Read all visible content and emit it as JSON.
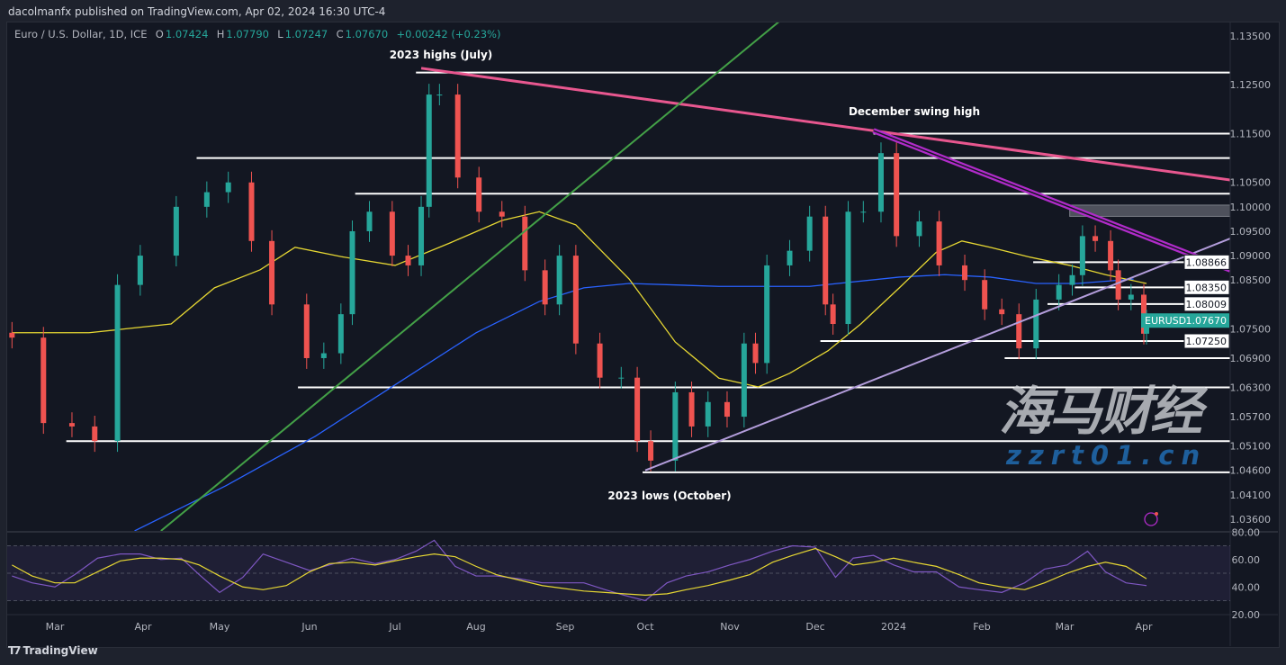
{
  "header": {
    "author_line": "dacolmanfx published on TradingView.com, Apr 02, 2024 16:30 UTC-4",
    "symbol_desc": "Euro / U.S. Dollar, 1D, ICE",
    "open_label": "O",
    "open": "1.07424",
    "high_label": "H",
    "high": "1.07790",
    "low_label": "L",
    "low": "1.07247",
    "close_label": "C",
    "close": "1.07670",
    "change": "+0.00242 (+0.23%)"
  },
  "colors": {
    "background": "#131722",
    "up": "#26a69a",
    "down": "#ef5350",
    "ma_fast": "#e6d733",
    "ma_slow": "#2962ff",
    "rsi": "#7e57c2",
    "rsi_ma": "#e6d733",
    "resistance_trend": "#e8578f",
    "green_trend": "#43a047",
    "support_trend": "#b39ddb",
    "channel_trend": "#b02bc9",
    "level": "#ffffff",
    "symbol_badge": "#26a69a"
  },
  "annotations": {
    "highs": "2023 highs (July)",
    "swing_high": "December swing high",
    "lows": "2023 lows (October)"
  },
  "branding": {
    "logo": "TradingView",
    "watermark_cn": "海马财经",
    "watermark_url": "zzrt01.cn"
  },
  "symbol_badge": {
    "symbol": "EURUSD",
    "price": "1.07670"
  },
  "chart_data": [
    {
      "type": "candlestick",
      "title": "Euro / U.S. Dollar, 1D, ICE",
      "x_tick_labels": [
        "Mar",
        "Apr",
        "May",
        "Jun",
        "Jul",
        "Aug",
        "Sep",
        "Oct",
        "Nov",
        "Dec",
        "2024",
        "Feb",
        "Mar",
        "Apr"
      ],
      "y_tick_labels": [
        "1.13500",
        "1.12500",
        "1.11500",
        "1.10500",
        "1.10000",
        "1.09500",
        "1.09000",
        "1.08500",
        "1.07500",
        "1.06900",
        "1.06300",
        "1.05700",
        "1.05100",
        "1.04600",
        "1.04100",
        "1.03600"
      ],
      "ylim": [
        1.0336,
        1.1383
      ],
      "grid": false,
      "closes": [
        [
          "2023-02-14",
          1.0732
        ],
        [
          "2023-02-25",
          1.0557
        ],
        [
          "2023-03-07",
          1.055
        ],
        [
          "2023-03-15",
          1.052
        ],
        [
          "2023-03-23",
          1.084
        ],
        [
          "2023-03-31",
          1.09
        ],
        [
          "2023-04-14",
          1.1
        ],
        [
          "2023-04-26",
          1.103
        ],
        [
          "2023-05-04",
          1.105
        ],
        [
          "2023-05-12",
          1.093
        ],
        [
          "2023-05-19",
          1.08
        ],
        [
          "2023-05-31",
          1.069
        ],
        [
          "2023-06-06",
          1.07
        ],
        [
          "2023-06-12",
          1.078
        ],
        [
          "2023-06-16",
          1.095
        ],
        [
          "2023-06-22",
          1.099
        ],
        [
          "2023-06-30",
          1.09
        ],
        [
          "2023-07-06",
          1.088
        ],
        [
          "2023-07-11",
          1.1
        ],
        [
          "2023-07-14",
          1.123
        ],
        [
          "2023-07-18",
          1.123
        ],
        [
          "2023-07-25",
          1.106
        ],
        [
          "2023-08-02",
          1.099
        ],
        [
          "2023-08-10",
          1.098
        ],
        [
          "2023-08-18",
          1.087
        ],
        [
          "2023-08-25",
          1.08
        ],
        [
          "2023-08-30",
          1.09
        ],
        [
          "2023-09-05",
          1.072
        ],
        [
          "2023-09-14",
          1.065
        ],
        [
          "2023-09-22",
          1.065
        ],
        [
          "2023-09-28",
          1.052
        ],
        [
          "2023-10-03",
          1.048
        ],
        [
          "2023-10-12",
          1.062
        ],
        [
          "2023-10-18",
          1.055
        ],
        [
          "2023-10-24",
          1.06
        ],
        [
          "2023-10-31",
          1.057
        ],
        [
          "2023-11-06",
          1.072
        ],
        [
          "2023-11-10",
          1.068
        ],
        [
          "2023-11-14",
          1.088
        ],
        [
          "2023-11-22",
          1.091
        ],
        [
          "2023-11-29",
          1.098
        ],
        [
          "2023-12-05",
          1.08
        ],
        [
          "2023-12-08",
          1.076
        ],
        [
          "2023-12-14",
          1.099
        ],
        [
          "2023-12-20",
          1.099
        ],
        [
          "2023-12-27",
          1.111
        ],
        [
          "2024-01-02",
          1.094
        ],
        [
          "2024-01-10",
          1.097
        ],
        [
          "2024-01-17",
          1.088
        ],
        [
          "2024-01-26",
          1.085
        ],
        [
          "2024-02-02",
          1.079
        ],
        [
          "2024-02-08",
          1.078
        ],
        [
          "2024-02-14",
          1.071
        ],
        [
          "2024-02-20",
          1.081
        ],
        [
          "2024-02-28",
          1.084
        ],
        [
          "2024-03-04",
          1.086
        ],
        [
          "2024-03-08",
          1.094
        ],
        [
          "2024-03-13",
          1.093
        ],
        [
          "2024-03-19",
          1.087
        ],
        [
          "2024-03-22",
          1.081
        ],
        [
          "2024-03-27",
          1.082
        ],
        [
          "2024-04-01",
          1.074
        ],
        [
          "2024-04-02",
          1.0767
        ]
      ],
      "ma_fast": [
        [
          "2023-02-14",
          1.0742
        ],
        [
          "2023-03-13",
          1.0742
        ],
        [
          "2023-04-12",
          1.076
        ],
        [
          "2023-04-29",
          1.0834
        ],
        [
          "2023-05-15",
          1.0871
        ],
        [
          "2023-05-27",
          1.0917
        ],
        [
          "2023-06-12",
          1.0898
        ],
        [
          "2023-07-01",
          1.088
        ],
        [
          "2023-07-22",
          1.0926
        ],
        [
          "2023-08-10",
          1.0972
        ],
        [
          "2023-08-23",
          1.099
        ],
        [
          "2023-09-05",
          1.0963
        ],
        [
          "2023-09-25",
          1.0852
        ],
        [
          "2023-10-12",
          1.0723
        ],
        [
          "2023-10-28",
          1.0649
        ],
        [
          "2023-11-11",
          1.0631
        ],
        [
          "2023-11-22",
          1.0659
        ],
        [
          "2023-12-06",
          1.0705
        ],
        [
          "2023-12-19",
          1.076
        ],
        [
          "2024-01-03",
          1.0834
        ],
        [
          "2024-01-16",
          1.0907
        ],
        [
          "2024-01-25",
          1.093
        ],
        [
          "2024-02-04",
          1.0917
        ],
        [
          "2024-02-17",
          1.0898
        ],
        [
          "2024-03-03",
          1.088
        ],
        [
          "2024-03-17",
          1.0861
        ],
        [
          "2024-04-02",
          1.0843
        ]
      ],
      "ma_slow": [
        [
          "2023-03-29",
          1.0336
        ],
        [
          "2023-05-03",
          1.0428
        ],
        [
          "2023-06-03",
          1.053
        ],
        [
          "2023-07-05",
          1.0649
        ],
        [
          "2023-08-01",
          1.0742
        ],
        [
          "2023-08-23",
          1.0806
        ],
        [
          "2023-09-08",
          1.0834
        ],
        [
          "2023-09-25",
          1.0843
        ],
        [
          "2023-10-28",
          1.0837
        ],
        [
          "2023-11-29",
          1.0837
        ],
        [
          "2024-01-03",
          1.0856
        ],
        [
          "2024-01-19",
          1.0861
        ],
        [
          "2024-02-04",
          1.0856
        ],
        [
          "2024-02-20",
          1.0843
        ],
        [
          "2024-03-06",
          1.0843
        ],
        [
          "2024-03-28",
          1.0852
        ]
      ],
      "horizontal_levels": [
        {
          "price": 1.1275,
          "from": "2023-07-09"
        },
        {
          "price": 1.115,
          "from": "2023-12-24"
        },
        {
          "price": 1.11,
          "from": "2023-04-22"
        },
        {
          "price": 1.1027,
          "from": "2023-06-17"
        },
        {
          "price": 1.08866,
          "from": "2024-02-19",
          "label": "1.08866"
        },
        {
          "price": 1.0835,
          "from": "2024-03-05",
          "label": "1.08350"
        },
        {
          "price": 1.08009,
          "from": "2024-02-24",
          "label": "1.08009"
        },
        {
          "price": 1.0725,
          "from": "2023-12-03",
          "label": "1.07250"
        },
        {
          "price": 1.069,
          "from": "2024-02-09"
        },
        {
          "price": 1.063,
          "from": "2023-05-28"
        },
        {
          "price": 1.052,
          "from": "2023-03-05"
        },
        {
          "price": 1.0456,
          "from": "2023-09-30"
        }
      ],
      "zone": {
        "from": "2024-03-03",
        "low": 1.0986,
        "high": 1.0998
      },
      "trend_lines": [
        {
          "name": "resistance",
          "color_key": "resistance_trend",
          "start": [
            "2023-07-11",
            1.1284
          ],
          "end": [
            "2024-05-03",
            1.1055
          ]
        },
        {
          "name": "green",
          "color_key": "green_trend",
          "start": [
            "2023-04-08",
            1.0336
          ],
          "end": [
            "2023-11-19",
            1.1383
          ]
        },
        {
          "name": "support",
          "color_key": "support_trend",
          "start": [
            "2023-10-01",
            1.046
          ],
          "end": [
            "2024-05-03",
            1.0935
          ]
        },
        {
          "name": "channel",
          "color_key": "channel_trend",
          "start": [
            "2023-12-24",
            1.1156
          ],
          "end": [
            "2024-05-03",
            1.0871
          ]
        }
      ]
    },
    {
      "type": "line",
      "y_tick_labels": [
        "80.00",
        "60.00",
        "40.00",
        "20.00"
      ],
      "ylim": [
        20,
        80
      ],
      "bands": [
        30,
        50,
        70
      ],
      "x_range": [
        "2023-02-14",
        "2024-04-02"
      ],
      "rsi": [
        48,
        43,
        40,
        49,
        61,
        64,
        64,
        60,
        61,
        49,
        36,
        47,
        64,
        58,
        52,
        56,
        61,
        57,
        60,
        66,
        74,
        55,
        48,
        48,
        46,
        43,
        43,
        43,
        38,
        34,
        30,
        43,
        48,
        51,
        56,
        60,
        66,
        70,
        69,
        47,
        61,
        63,
        56,
        51,
        51,
        40,
        38,
        36,
        43,
        53,
        56,
        66,
        51,
        43,
        41
      ],
      "rsi_ma": [
        56,
        48,
        43,
        43,
        51,
        59,
        61,
        61,
        60,
        56,
        48,
        40,
        38,
        41,
        51,
        57,
        58,
        56,
        59,
        62,
        64,
        62,
        55,
        49,
        45,
        41,
        39,
        37,
        36,
        35,
        34,
        35,
        38,
        41,
        45,
        49,
        58,
        63,
        68,
        62,
        56,
        58,
        61,
        58,
        55,
        49,
        43,
        40,
        38,
        43,
        50,
        55,
        58,
        55,
        46
      ]
    }
  ]
}
